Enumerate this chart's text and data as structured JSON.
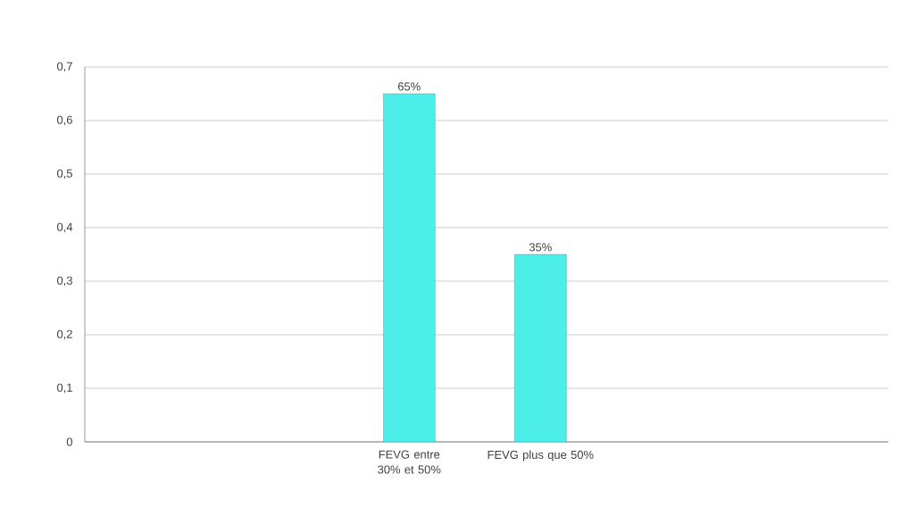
{
  "chart_data": {
    "type": "bar",
    "categories": [
      "FEVG entre 30% et 50%",
      "FEVG plus que 50%"
    ],
    "values": [
      0.65,
      0.35
    ],
    "value_labels": [
      "65%",
      "35%"
    ],
    "color": "#4deee9",
    "ylim": [
      0,
      0.7
    ],
    "yticks": [
      0,
      {
        "value": 0.1,
        "label": "0,1"
      },
      {
        "value": 0.2,
        "label": "0,2"
      },
      {
        "value": 0.3,
        "label": "0,3"
      },
      {
        "value": 0.4,
        "label": "0,4"
      },
      {
        "value": 0.5,
        "label": "0,5"
      },
      {
        "value": 0.6,
        "label": "0,6"
      },
      {
        "value": 0.7,
        "label": "0,7"
      }
    ],
    "grid": "y"
  }
}
